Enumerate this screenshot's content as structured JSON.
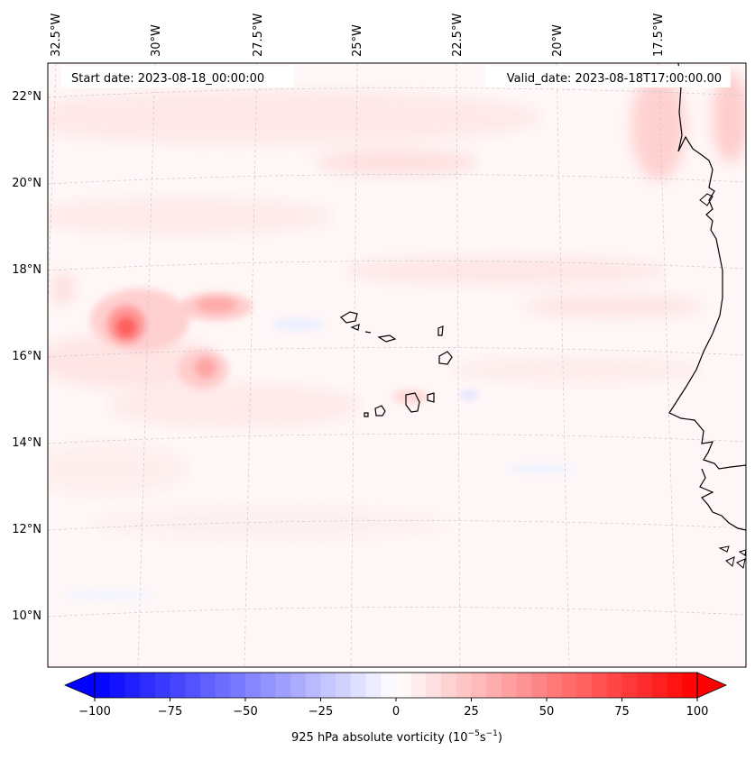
{
  "map": {
    "start_date": "Start date: 2023-08-18_00:00:00",
    "valid_date": "Valid_date: 2023-08-18T17:00:00.00",
    "lon_labels": [
      "32.5°W",
      "30°W",
      "27.5°W",
      "25°W",
      "22.5°W",
      "20°W",
      "17.5°W"
    ],
    "lat_labels": [
      "22°N",
      "20°N",
      "18°N",
      "16°N",
      "14°N",
      "12°N",
      "10°N"
    ]
  },
  "colorbar": {
    "label_prefix": "925 hPa absolute vorticity (10",
    "label_exp1": "−5",
    "label_mid": "s",
    "label_exp2": "−1",
    "label_suffix": ")",
    "ticks": [
      "−100",
      "−75",
      "−50",
      "−25",
      "0",
      "25",
      "50",
      "75",
      "100"
    ],
    "vmin": -100,
    "vmax": 100,
    "levels": 40,
    "min_color": "#0000ff",
    "mid_color": "#ffffff",
    "max_color": "#ff0000"
  },
  "colors": {
    "coast": "#000000",
    "grid": "#c8c8c8",
    "background_tint": "#fff6f6"
  }
}
